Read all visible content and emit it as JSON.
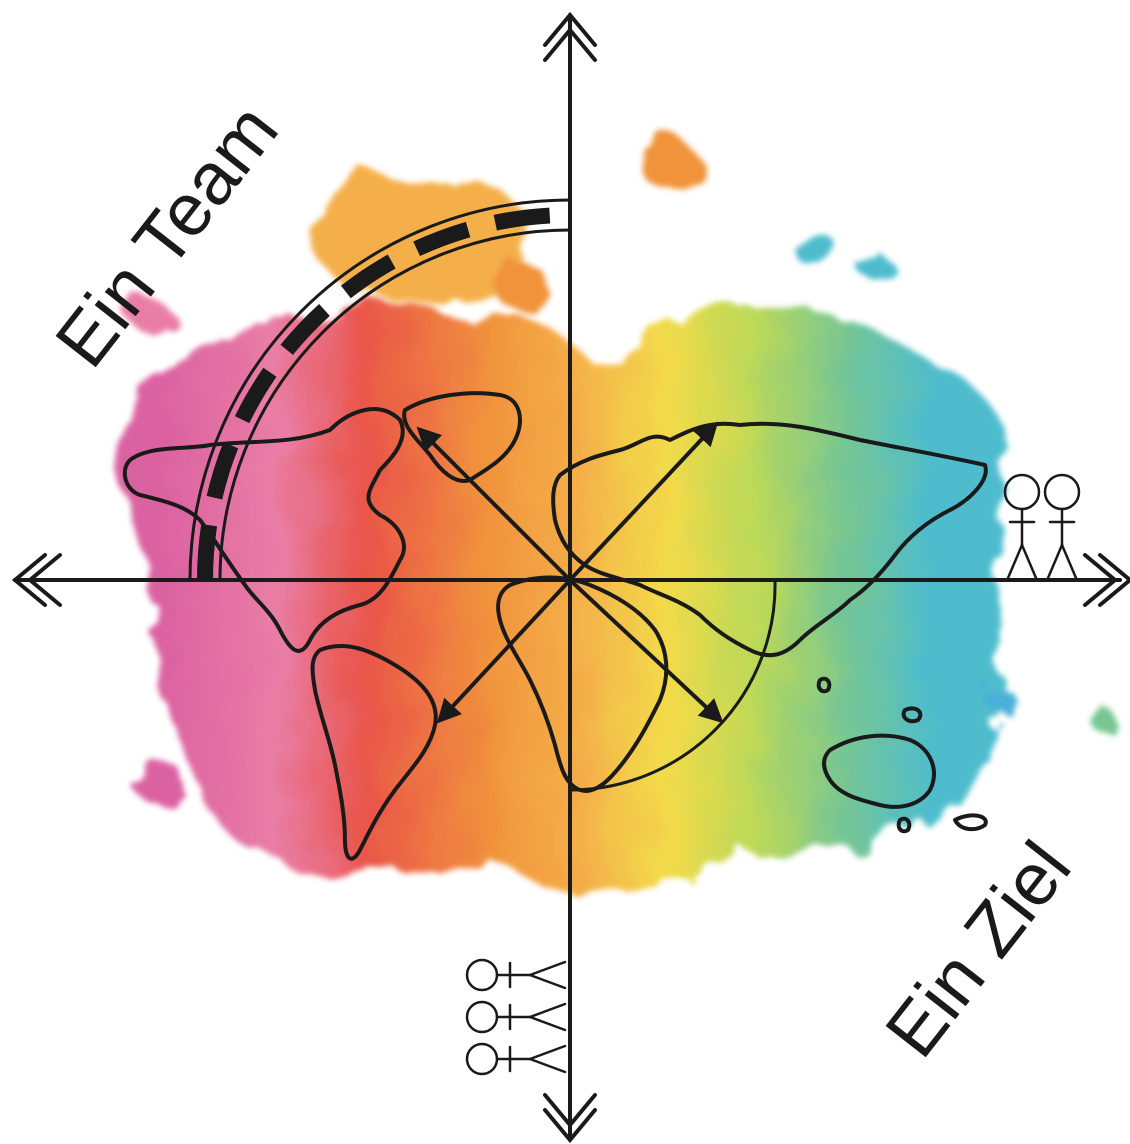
{
  "labels": {
    "team": "Ein Team",
    "goal": "Ein Ziel"
  },
  "colors": {
    "ink": "#1a1a1a",
    "magenta": "#d9559a",
    "pink": "#e8739f",
    "red": "#e8473a",
    "orange": "#f08a2c",
    "amber": "#f4a93a",
    "yellow": "#f2d83a",
    "lime": "#b7d64a",
    "green": "#6cc28a",
    "teal": "#3fb7c9",
    "blue": "#3aa9d6"
  },
  "icons": [
    "world-map-outline-icon",
    "compass-cross-icon",
    "arrow-icon",
    "stick-figure-icon",
    "watercolor-splash-icon"
  ]
}
